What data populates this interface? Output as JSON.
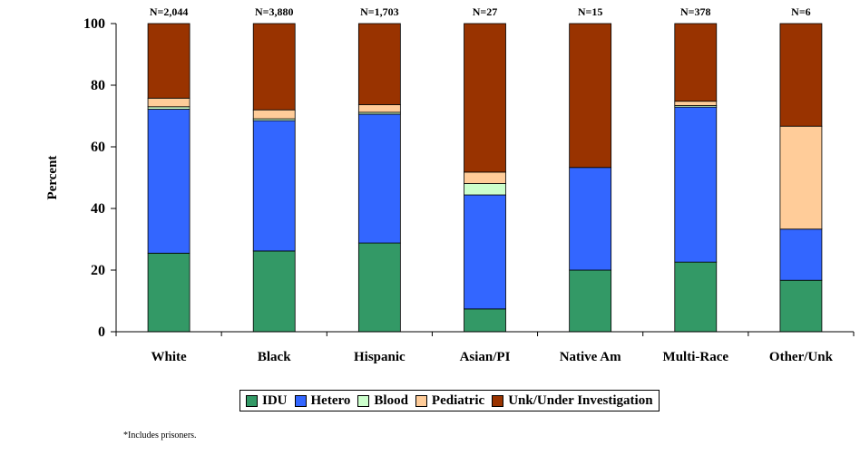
{
  "chart_data": {
    "type": "bar",
    "stacked": true,
    "categories": [
      "White",
      "Black",
      "Hispanic",
      "Asian/PI",
      "Native Am",
      "Multi-Race",
      "Other/Unk"
    ],
    "n_labels": [
      "N=2,044",
      "N=3,880",
      "N=1,703",
      "N=27",
      "N=15",
      "N=378",
      "N=6"
    ],
    "series": [
      {
        "name": "IDU",
        "color": "#339966",
        "values": [
          25.5,
          26.2,
          28.8,
          7.4,
          20.0,
          22.6,
          16.7
        ]
      },
      {
        "name": "Hetero",
        "color": "#3366ff",
        "values": [
          46.7,
          42.3,
          41.8,
          37.0,
          33.3,
          50.3,
          16.6
        ]
      },
      {
        "name": "Blood",
        "color": "#ccffcc",
        "values": [
          0.8,
          0.6,
          0.6,
          3.7,
          0.0,
          0.5,
          0.0
        ]
      },
      {
        "name": "Pediatric",
        "color": "#ffcc99",
        "values": [
          2.8,
          2.9,
          2.5,
          3.7,
          0.0,
          1.4,
          33.4
        ]
      },
      {
        "name": "Unk/Under Investigation",
        "color": "#993300",
        "values": [
          24.2,
          28.0,
          26.3,
          48.2,
          46.7,
          25.2,
          33.3
        ]
      }
    ],
    "ylabel": "Percent",
    "xlabel": "",
    "ylim": [
      0,
      100
    ],
    "yticks": [
      "0",
      "20",
      "40",
      "60",
      "80",
      "100"
    ],
    "grid": false,
    "legend_position": "bottom"
  },
  "footnote": "*Includes prisoners."
}
